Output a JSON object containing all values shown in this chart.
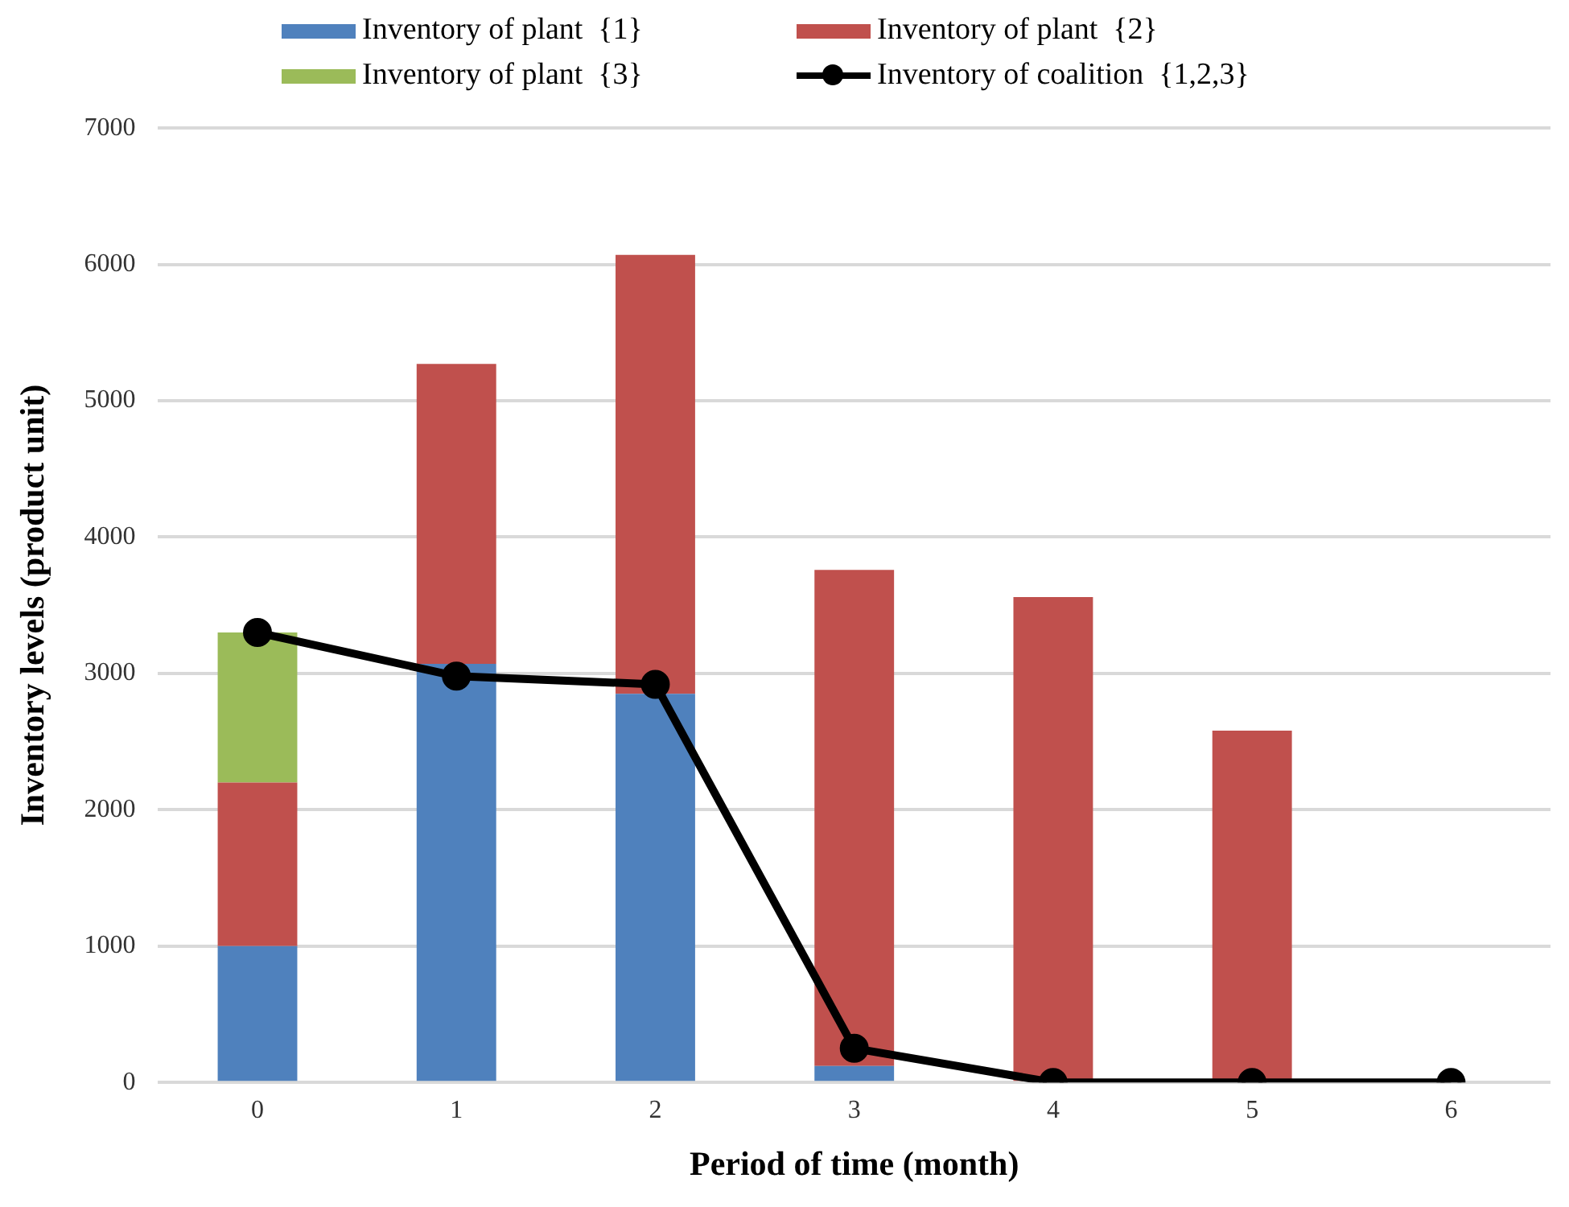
{
  "chart_data": {
    "type": "bar",
    "stacked": true,
    "xlabel": "Period of time (month)",
    "ylabel": "Inventory levels (product unit)",
    "categories": [
      "0",
      "1",
      "2",
      "3",
      "4",
      "5",
      "6"
    ],
    "series": [
      {
        "name": "Inventory of plant  {1}",
        "color": "#4f81bd",
        "values": [
          1000,
          3070,
          2850,
          120,
          0,
          0,
          0
        ]
      },
      {
        "name": "Inventory of plant  {2}",
        "color": "#c0504d",
        "values": [
          1200,
          2200,
          3220,
          3640,
          3560,
          2580,
          0
        ]
      },
      {
        "name": "Inventory of plant  {3}",
        "color": "#9bbb59",
        "values": [
          1100,
          0,
          0,
          0,
          0,
          0,
          0
        ]
      },
      {
        "name": "Inventory of coalition  {1,2,3}",
        "type": "line",
        "color": "#000000",
        "marker": "circle",
        "line_style": "solid",
        "values": [
          3300,
          2980,
          2920,
          250,
          0,
          0,
          0
        ]
      }
    ],
    "ylim": [
      0,
      7000
    ],
    "yticks": [
      0,
      1000,
      2000,
      3000,
      4000,
      5000,
      6000,
      7000
    ],
    "grid": "y",
    "legend": "top"
  }
}
